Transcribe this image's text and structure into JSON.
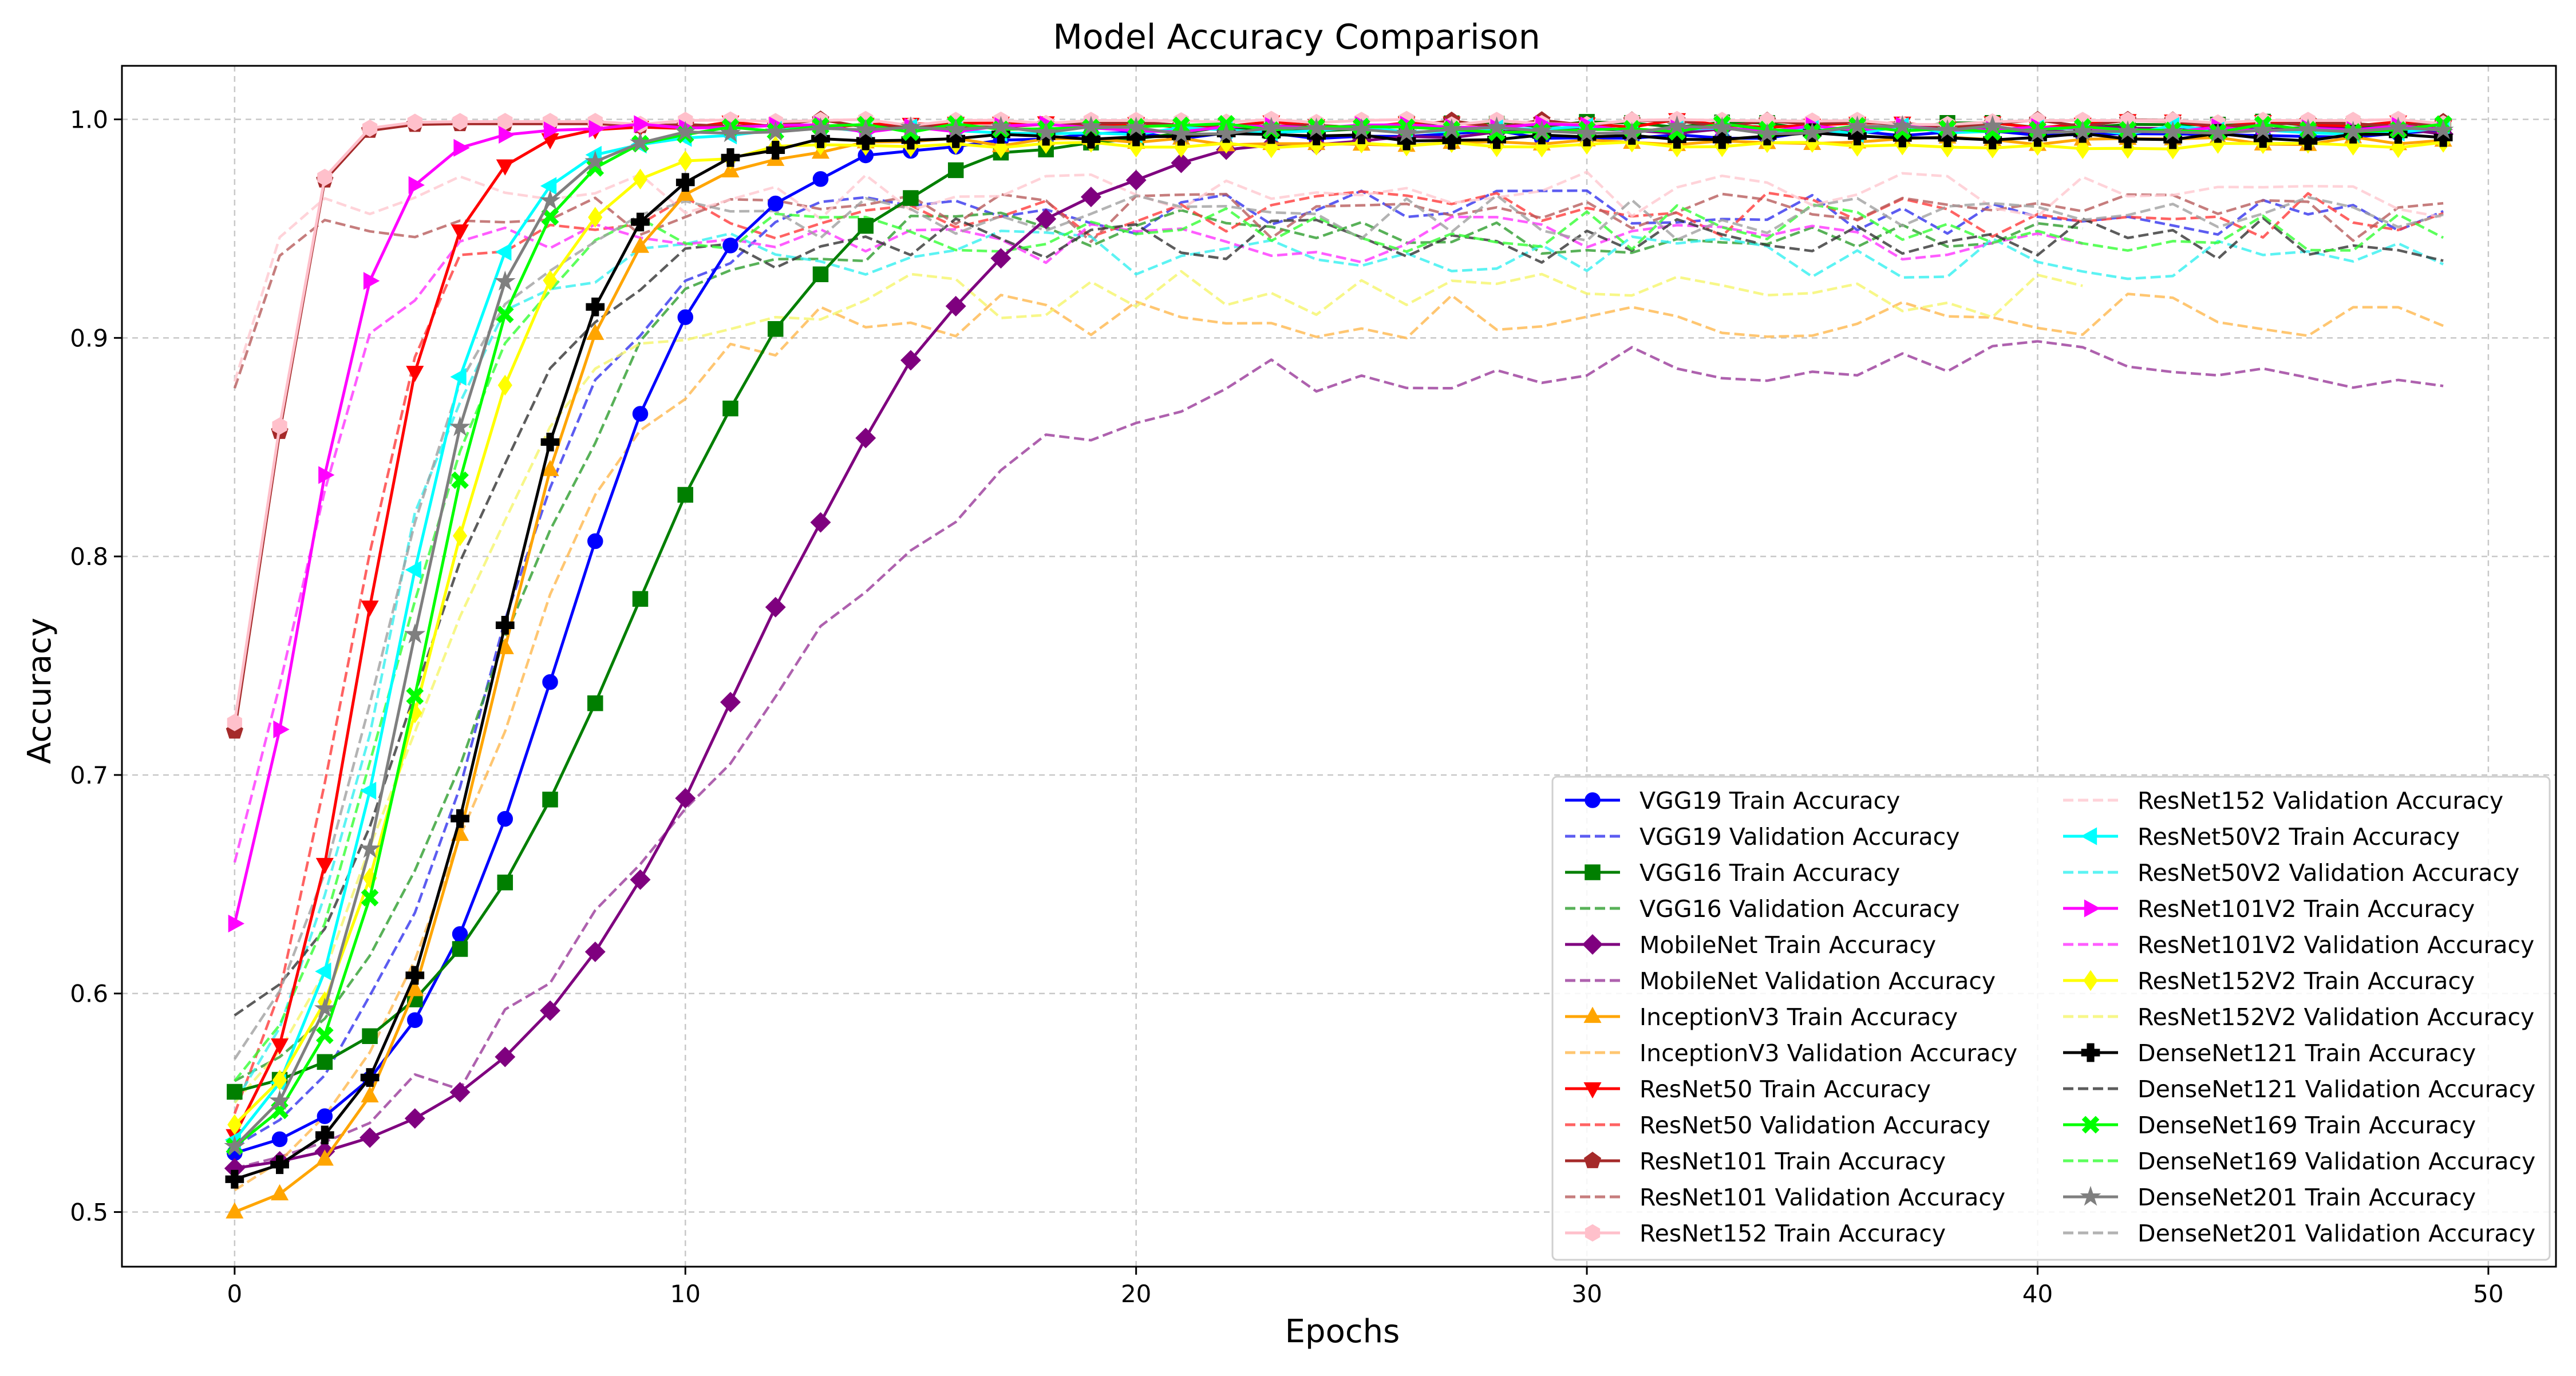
{
  "chart_data": {
    "type": "line",
    "title": "Model Accuracy Comparison",
    "xlabel": "Epochs",
    "ylabel": "Accuracy",
    "xlim": [
      -2.5,
      51.5
    ],
    "ylim": [
      0.475,
      1.0245
    ],
    "xticks": [
      0,
      10,
      20,
      30,
      40,
      50
    ],
    "yticks": [
      0.5,
      0.6,
      0.7,
      0.8,
      0.9,
      1.0
    ],
    "xtick_labels": [
      "0",
      "10",
      "20",
      "30",
      "40",
      "50"
    ],
    "ytick_labels": [
      "0.5",
      "0.6",
      "0.7",
      "0.8",
      "0.9",
      "1.0"
    ],
    "grid": true,
    "legend_position": "bottom-right",
    "legend_columns": 2,
    "series": [
      {
        "name": "VGG19 Train Accuracy",
        "color": "#0000ff",
        "style": "solid",
        "marker": "circle",
        "start": 0.527,
        "mid": 7.2,
        "k": 0.55,
        "final": 0.993
      },
      {
        "name": "VGG19 Validation Accuracy",
        "color": "#3333ee",
        "style": "dashed",
        "marker": "none",
        "start": 0.53,
        "mid": 5.5,
        "k": 0.6,
        "final": 0.957
      },
      {
        "name": "VGG16 Train Accuracy",
        "color": "#007f00",
        "style": "solid",
        "marker": "square",
        "start": 0.555,
        "mid": 8.8,
        "k": 0.42,
        "final": 0.997
      },
      {
        "name": "VGG16 Validation Accuracy",
        "color": "#2e9e2e",
        "style": "dashed",
        "marker": "none",
        "start": 0.56,
        "mid": 5.8,
        "k": 0.55,
        "final": 0.948
      },
      {
        "name": "MobileNet Train Accuracy",
        "color": "#7f007f",
        "style": "solid",
        "marker": "diamond",
        "start": 0.52,
        "mid": 11.5,
        "k": 0.36,
        "final": 0.995
      },
      {
        "name": "MobileNet Validation Accuracy",
        "color": "#9a3a9a",
        "style": "dashed",
        "marker": "none",
        "start": 0.52,
        "mid": 10.5,
        "k": 0.3,
        "final": 0.888
      },
      {
        "name": "InceptionV3 Train Accuracy",
        "color": "#ffa500",
        "style": "solid",
        "marker": "triangle-up",
        "start": 0.5,
        "mid": 5.8,
        "k": 0.7,
        "final": 0.99
      },
      {
        "name": "InceptionV3 Validation Accuracy",
        "color": "#ffb84d",
        "style": "dashed",
        "marker": "none",
        "start": 0.51,
        "mid": 5.5,
        "k": 0.55,
        "final": 0.91
      },
      {
        "name": "ResNet50 Train Accuracy",
        "color": "#ff0000",
        "style": "solid",
        "marker": "triangle-down",
        "start": 0.535,
        "mid": 2.8,
        "k": 1.0,
        "final": 0.998
      },
      {
        "name": "ResNet50 Validation Accuracy",
        "color": "#ff3b3b",
        "style": "dashed",
        "marker": "none",
        "start": 0.545,
        "mid": 2.3,
        "k": 1.0,
        "final": 0.956
      },
      {
        "name": "ResNet101 Train Accuracy",
        "color": "#a52a2a",
        "style": "solid",
        "marker": "pentagon",
        "start": 0.72,
        "mid": 0.9,
        "k": 2.2,
        "final": 0.998
      },
      {
        "name": "ResNet101 Validation Accuracy",
        "color": "#b85c5c",
        "style": "dashed",
        "marker": "none",
        "start": 0.877,
        "mid": 0.5,
        "k": 3.0,
        "final": 0.955
      },
      {
        "name": "ResNet152 Train Accuracy",
        "color": "#ffc0cb",
        "style": "solid",
        "marker": "hexagon",
        "start": 0.724,
        "mid": 0.9,
        "k": 2.2,
        "final": 0.999
      },
      {
        "name": "ResNet152 Validation Accuracy",
        "color": "#ffc8d0",
        "style": "dashed",
        "marker": "none",
        "start": 0.88,
        "mid": 0.5,
        "k": 3.0,
        "final": 0.965
      },
      {
        "name": "ResNet50V2 Train Accuracy",
        "color": "#00ffff",
        "style": "solid",
        "marker": "triangle-left",
        "start": 0.533,
        "mid": 3.6,
        "k": 0.85,
        "final": 0.995
      },
      {
        "name": "ResNet50V2 Validation Accuracy",
        "color": "#33f0f0",
        "style": "dashed",
        "marker": "none",
        "start": 0.55,
        "mid": 3.0,
        "k": 0.85,
        "final": 0.938
      },
      {
        "name": "ResNet101V2 Train Accuracy",
        "color": "#ff00ff",
        "style": "solid",
        "marker": "triangle-right",
        "start": 0.632,
        "mid": 1.5,
        "k": 1.1,
        "final": 0.996
      },
      {
        "name": "ResNet101V2 Validation Accuracy",
        "color": "#ff33ff",
        "style": "dashed",
        "marker": "none",
        "start": 0.66,
        "mid": 1.2,
        "k": 1.0,
        "final": 0.945
      },
      {
        "name": "ResNet152V2 Train Accuracy",
        "color": "#ffff00",
        "style": "solid",
        "marker": "diamond-thin",
        "start": 0.54,
        "mid": 4.3,
        "k": 0.7,
        "final": 0.988
      },
      {
        "name": "ResNet152V2 Validation Accuracy",
        "color": "#f5f56a",
        "style": "dashed",
        "marker": "none",
        "start": 0.55,
        "mid": 4.0,
        "k": 0.6,
        "final": 0.92
      },
      {
        "name": "DenseNet121 Train Accuracy",
        "color": "#000000",
        "style": "solid",
        "marker": "plus",
        "start": 0.515,
        "mid": 5.8,
        "k": 0.75,
        "final": 0.992
      },
      {
        "name": "DenseNet121 Validation Accuracy",
        "color": "#333333",
        "style": "dashed",
        "marker": "none",
        "start": 0.59,
        "mid": 4.5,
        "k": 0.7,
        "final": 0.945
      },
      {
        "name": "DenseNet169 Train Accuracy",
        "color": "#00ff00",
        "style": "solid",
        "marker": "x",
        "start": 0.53,
        "mid": 4.2,
        "k": 0.85,
        "final": 0.996
      },
      {
        "name": "DenseNet169 Validation Accuracy",
        "color": "#33ff33",
        "style": "dashed",
        "marker": "none",
        "start": 0.56,
        "mid": 3.5,
        "k": 0.8,
        "final": 0.95
      },
      {
        "name": "DenseNet201 Train Accuracy",
        "color": "#7f7f7f",
        "style": "solid",
        "marker": "star",
        "start": 0.53,
        "mid": 3.9,
        "k": 0.85,
        "final": 0.995
      },
      {
        "name": "DenseNet201 Validation Accuracy",
        "color": "#a0a0a0",
        "style": "dashed",
        "marker": "none",
        "start": 0.57,
        "mid": 3.2,
        "k": 0.8,
        "final": 0.955
      }
    ]
  }
}
